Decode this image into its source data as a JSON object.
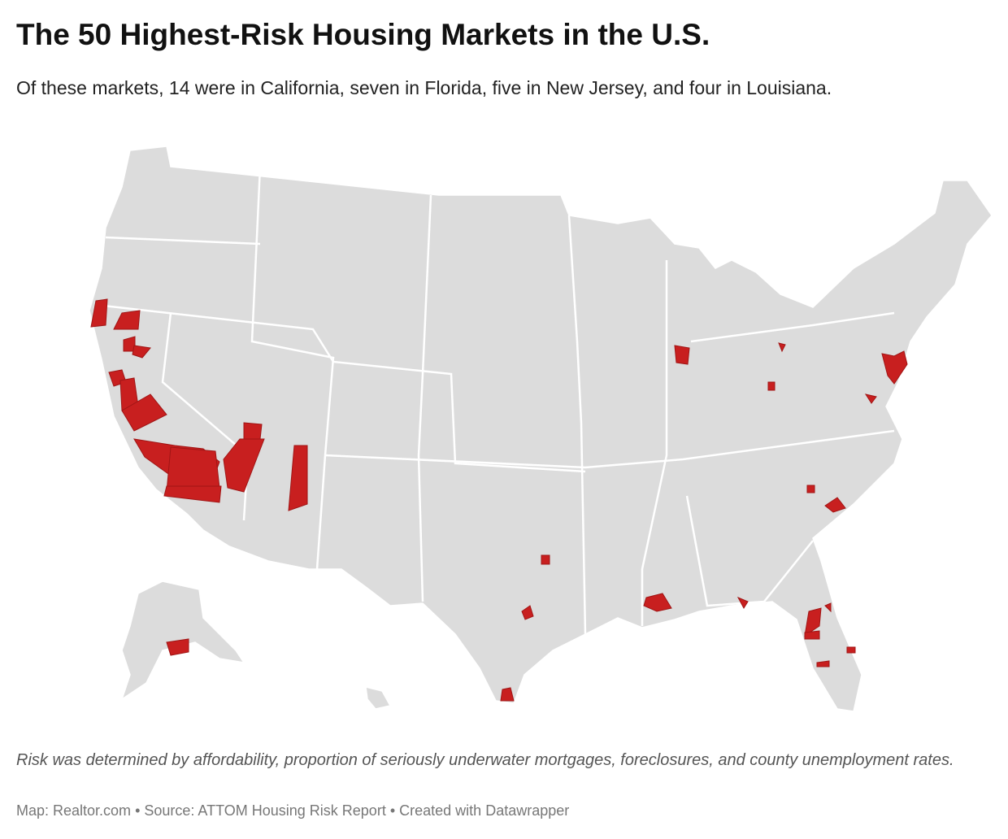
{
  "header": {
    "title": "The 50 Highest-Risk Housing Markets in the U.S.",
    "subtitle": "Of these markets, 14 were in California, seven in Florida, five in New Jersey, and four in Louisiana."
  },
  "notes": "Risk was determined by affordability, proportion of seriously underwater mortgages, foreclosures, and county unemployment rates.",
  "footer": {
    "map": "Map: Realtor.com",
    "source": "Source: ATTOM Housing Risk Report",
    "credit": "Created with Datawrapper"
  }
}
